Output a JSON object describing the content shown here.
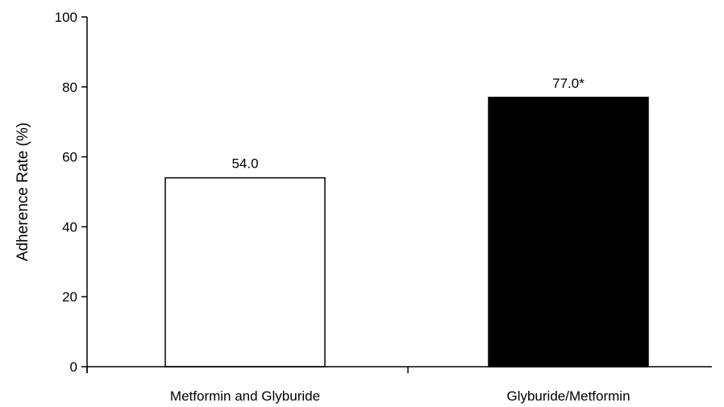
{
  "chart_data": {
    "type": "bar",
    "title": "",
    "xlabel": "",
    "ylabel": "Adherence Rate (%)",
    "ylim": [
      0,
      100
    ],
    "yticks": [
      0,
      20,
      40,
      60,
      80,
      100
    ],
    "categories": [
      "Metformin and Glyburide",
      "Glyburide/Metformin"
    ],
    "values": [
      54.0,
      77.0
    ],
    "data_labels": [
      "54.0",
      "77.0*"
    ],
    "bar_fills": [
      "#ffffff",
      "#000000"
    ],
    "grid": false,
    "legend": "none"
  }
}
